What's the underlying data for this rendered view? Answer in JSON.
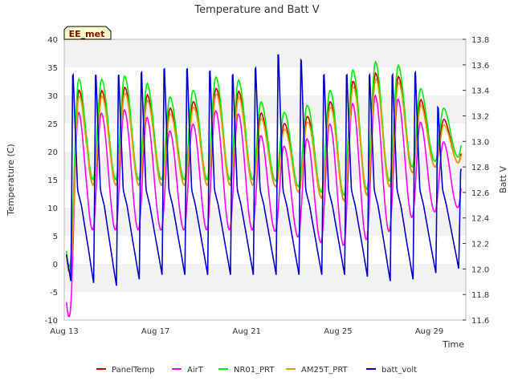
{
  "chart_data": {
    "type": "line",
    "title": "Temperature and Batt V",
    "station_badge": "EE_met",
    "xlabel": "Time",
    "ylabel_left": "Temperature (C)",
    "ylabel_right": "Batt V",
    "x_range_days": [
      13,
      30.6
    ],
    "x_ticks": [
      {
        "day": 13,
        "label": "Aug 13"
      },
      {
        "day": 17,
        "label": "Aug 17"
      },
      {
        "day": 21,
        "label": "Aug 21"
      },
      {
        "day": 25,
        "label": "Aug 25"
      },
      {
        "day": 29,
        "label": "Aug 29"
      }
    ],
    "ylim_left": [
      -10,
      40
    ],
    "yticks_left": [
      -10,
      -5,
      0,
      5,
      10,
      15,
      20,
      25,
      30,
      35,
      40
    ],
    "ylim_right": [
      11.6,
      13.8
    ],
    "yticks_right": [
      11.6,
      11.8,
      12.0,
      12.2,
      12.4,
      12.6,
      12.8,
      13.0,
      13.2,
      13.4,
      13.6,
      13.8
    ],
    "grid": "horizontal bands",
    "legend_position": "bottom",
    "daily": {
      "peak_hour": 15,
      "day_min": [
        -8,
        12,
        12,
        12,
        12,
        12,
        12,
        12,
        12,
        12,
        11,
        10,
        9,
        10,
        11,
        14,
        15,
        16
      ],
      "day_max": [
        30,
        31.5,
        30.5,
        32,
        29,
        27,
        30,
        32,
        30,
        25,
        25,
        27,
        30,
        34,
        34,
        33,
        27,
        25
      ],
      "batt_min": [
        11.9,
        11.9,
        11.85,
        11.9,
        11.95,
        11.95,
        11.95,
        11.95,
        11.95,
        11.95,
        11.95,
        11.95,
        11.95,
        11.95,
        11.9,
        11.9,
        11.95,
        12.0
      ],
      "batt_max": [
        13.6,
        13.6,
        13.6,
        13.6,
        13.65,
        13.65,
        13.65,
        13.6,
        13.6,
        13.75,
        13.8,
        13.6,
        13.6,
        13.6,
        13.6,
        13.6,
        13.65,
        12.8
      ]
    },
    "series": [
      {
        "name": "PanelTemp",
        "color": "#cc0000",
        "axis": "left",
        "offset_max": 0,
        "offset_min": 2,
        "lag_h": 0.5
      },
      {
        "name": "AirT",
        "color": "#ff00ff",
        "axis": "left",
        "offset_max": -4,
        "offset_min": -6,
        "lag_h": 0.0
      },
      {
        "name": "NR01_PRT",
        "color": "#00ee00",
        "axis": "left",
        "offset_max": 2,
        "offset_min": 3,
        "lag_h": 0.3
      },
      {
        "name": "AM25T_PRT",
        "color": "#e5a000",
        "axis": "left",
        "offset_max": -1,
        "offset_min": 2,
        "lag_h": 0.7
      },
      {
        "name": "batt_volt",
        "color": "#0000cc",
        "axis": "right"
      }
    ]
  }
}
